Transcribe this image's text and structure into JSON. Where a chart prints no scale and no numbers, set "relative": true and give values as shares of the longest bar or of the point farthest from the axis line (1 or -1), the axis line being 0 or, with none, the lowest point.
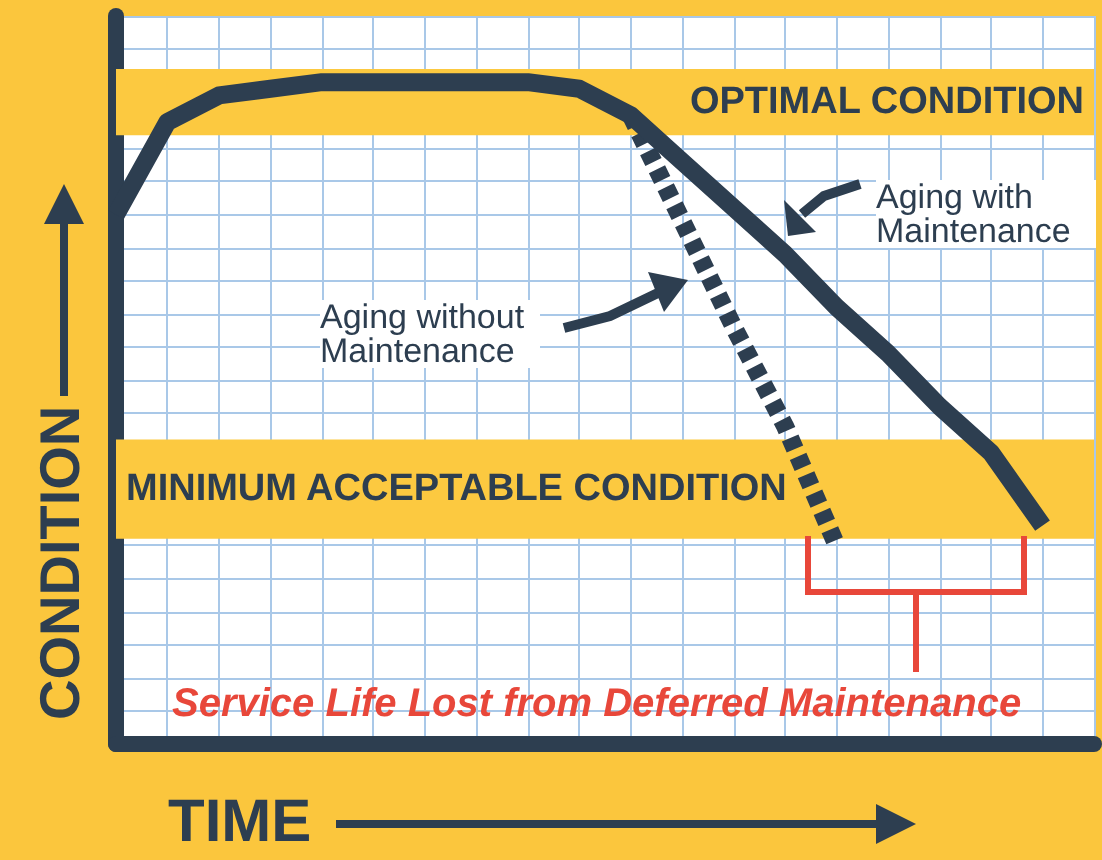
{
  "chart_data": {
    "type": "line",
    "relative": true,
    "xlabel": "TIME",
    "ylabel": "CONDITION",
    "categories": [
      null,
      null,
      null,
      null,
      null,
      null,
      null,
      null,
      null,
      null,
      null,
      null,
      null,
      null,
      null,
      null,
      null,
      null,
      null,
      null
    ],
    "series": [
      {
        "color": "#2d3e50",
        "line_style": "solid",
        "values": [
          0.8,
          0.94,
          0.98,
          0.99,
          1,
          1,
          1,
          1,
          1,
          0.99,
          0.95,
          0.88,
          0.81,
          0.74,
          0.66,
          0.59,
          0.51,
          0.44,
          0.33,
          null
        ]
      },
      {
        "color": "#2d3e50",
        "line_style": "dashed",
        "values": [
          null,
          null,
          null,
          null,
          null,
          null,
          null,
          null,
          null,
          null,
          0.95,
          0.79,
          0.63,
          0.48,
          0.3,
          null,
          null,
          null,
          null,
          null
        ]
      }
    ],
    "bands": [
      {
        "axis": "y",
        "from": 0.92,
        "to": 1.02,
        "label": "OPTIMAL CONDITION",
        "color": "#fcc940"
      },
      {
        "axis": "y",
        "from": 0.31,
        "to": 0.46,
        "label": "MINIMUM ACCEPTABLE CONDITION",
        "color": "#fcc940"
      }
    ],
    "annotations": [
      "Aging with Maintenance",
      "Aging without Maintenance",
      "Service Life Lost from Deferred Maintenance"
    ],
    "grid": true,
    "marker": "none"
  }
}
